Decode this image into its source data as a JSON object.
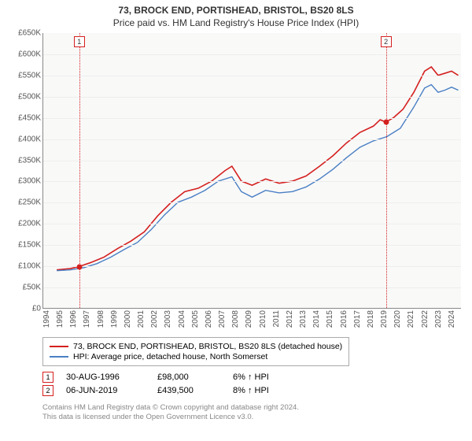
{
  "title": "73, BROCK END, PORTISHEAD, BRISTOL, BS20 8LS",
  "subtitle": "Price paid vs. HM Land Registry's House Price Index (HPI)",
  "chart": {
    "type": "line",
    "background_color": "#f9f9f8",
    "grid_color": "#eeeeee",
    "axis_color": "#888888",
    "label_fontsize": 10,
    "label_color": "#555555",
    "ylim": [
      0,
      650000
    ],
    "y_ticks": [
      0,
      50000,
      100000,
      150000,
      200000,
      250000,
      300000,
      350000,
      400000,
      450000,
      500000,
      550000,
      600000,
      650000
    ],
    "y_tick_labels": [
      "£0",
      "£50K",
      "£100K",
      "£150K",
      "£200K",
      "£250K",
      "£300K",
      "£350K",
      "£400K",
      "£450K",
      "£500K",
      "£550K",
      "£600K",
      "£650K"
    ],
    "xlim": [
      1994,
      2025
    ],
    "x_ticks": [
      1994,
      1995,
      1996,
      1997,
      1998,
      1999,
      2000,
      2001,
      2002,
      2003,
      2004,
      2005,
      2006,
      2007,
      2008,
      2009,
      2010,
      2011,
      2012,
      2013,
      2014,
      2015,
      2016,
      2017,
      2018,
      2019,
      2020,
      2021,
      2022,
      2023,
      2024
    ],
    "series": [
      {
        "name": "price-paid",
        "label": "73, BROCK END, PORTISHEAD, BRISTOL, BS20 8LS (detached house)",
        "color": "#d4201f",
        "line_width": 1.6,
        "points": [
          [
            1995.0,
            90000
          ],
          [
            1996.0,
            93000
          ],
          [
            1996.67,
            98000
          ],
          [
            1997.5,
            107000
          ],
          [
            1998.5,
            120000
          ],
          [
            1999.5,
            140000
          ],
          [
            2000.5,
            158000
          ],
          [
            2001.5,
            180000
          ],
          [
            2002.5,
            218000
          ],
          [
            2003.5,
            250000
          ],
          [
            2004.5,
            275000
          ],
          [
            2005.5,
            283000
          ],
          [
            2006.5,
            300000
          ],
          [
            2007.5,
            325000
          ],
          [
            2008.0,
            335000
          ],
          [
            2008.7,
            300000
          ],
          [
            2009.5,
            290000
          ],
          [
            2010.5,
            305000
          ],
          [
            2011.5,
            295000
          ],
          [
            2012.5,
            300000
          ],
          [
            2013.5,
            312000
          ],
          [
            2014.5,
            335000
          ],
          [
            2015.5,
            360000
          ],
          [
            2016.5,
            390000
          ],
          [
            2017.5,
            415000
          ],
          [
            2018.5,
            430000
          ],
          [
            2019.0,
            445000
          ],
          [
            2019.43,
            439500
          ],
          [
            2020.0,
            450000
          ],
          [
            2020.7,
            470000
          ],
          [
            2021.5,
            510000
          ],
          [
            2022.3,
            560000
          ],
          [
            2022.8,
            570000
          ],
          [
            2023.3,
            550000
          ],
          [
            2023.8,
            555000
          ],
          [
            2024.3,
            560000
          ],
          [
            2024.8,
            550000
          ]
        ]
      },
      {
        "name": "hpi",
        "label": "HPI: Average price, detached house, North Somerset",
        "color": "#4a7fc4",
        "line_width": 1.4,
        "points": [
          [
            1995.0,
            88000
          ],
          [
            1996.0,
            90000
          ],
          [
            1997.0,
            95000
          ],
          [
            1998.0,
            105000
          ],
          [
            1999.0,
            120000
          ],
          [
            2000.0,
            138000
          ],
          [
            2001.0,
            155000
          ],
          [
            2002.0,
            185000
          ],
          [
            2003.0,
            220000
          ],
          [
            2004.0,
            250000
          ],
          [
            2005.0,
            262000
          ],
          [
            2006.0,
            278000
          ],
          [
            2007.0,
            300000
          ],
          [
            2008.0,
            310000
          ],
          [
            2008.7,
            275000
          ],
          [
            2009.5,
            262000
          ],
          [
            2010.5,
            278000
          ],
          [
            2011.5,
            272000
          ],
          [
            2012.5,
            275000
          ],
          [
            2013.5,
            286000
          ],
          [
            2014.5,
            305000
          ],
          [
            2015.5,
            328000
          ],
          [
            2016.5,
            355000
          ],
          [
            2017.5,
            380000
          ],
          [
            2018.5,
            395000
          ],
          [
            2019.5,
            405000
          ],
          [
            2020.5,
            425000
          ],
          [
            2021.5,
            475000
          ],
          [
            2022.3,
            520000
          ],
          [
            2022.8,
            528000
          ],
          [
            2023.3,
            510000
          ],
          [
            2023.8,
            515000
          ],
          [
            2024.3,
            522000
          ],
          [
            2024.8,
            515000
          ]
        ]
      }
    ],
    "markers": [
      {
        "n": "1",
        "x": 1996.67,
        "y": 98000,
        "color": "#d4201f"
      },
      {
        "n": "2",
        "x": 2019.43,
        "y": 439500,
        "color": "#d4201f"
      }
    ]
  },
  "transactions": [
    {
      "n": "1",
      "color": "#d4201f",
      "date": "30-AUG-1996",
      "price": "£98,000",
      "diff": "6% ↑ HPI"
    },
    {
      "n": "2",
      "color": "#d4201f",
      "date": "06-JUN-2019",
      "price": "£439,500",
      "diff": "8% ↑ HPI"
    }
  ],
  "footer_line1": "Contains HM Land Registry data © Crown copyright and database right 2024.",
  "footer_line2": "This data is licensed under the Open Government Licence v3.0."
}
